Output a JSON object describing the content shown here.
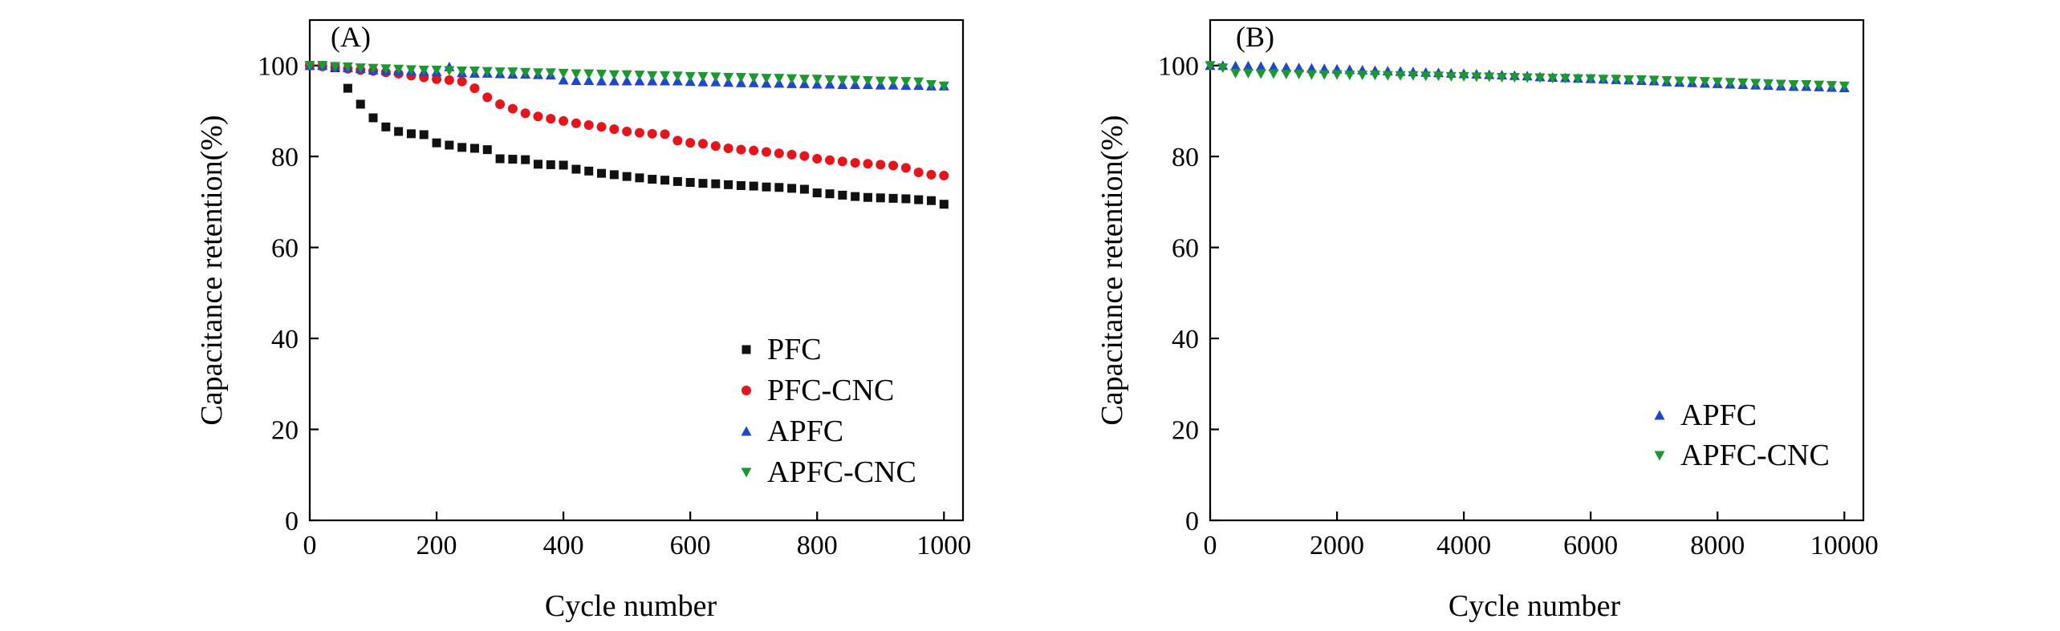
{
  "colors": {
    "PFC": "#111111",
    "PFC-CNC": "#e8141a",
    "APFC": "#1f45d6",
    "APFC-CNC": "#1a9a2e"
  },
  "chart_data": [
    {
      "type": "scatter",
      "panel_label": "(A)",
      "xlabel": "Cycle number",
      "ylabel": "Capacitance retention(%)",
      "xlim": [
        0,
        1030
      ],
      "ylim": [
        0,
        110
      ],
      "xticks": [
        0,
        200,
        400,
        600,
        800,
        1000
      ],
      "yticks": [
        0,
        20,
        40,
        60,
        80,
        100
      ],
      "legend_position": "bottom-right",
      "series": [
        {
          "name": "PFC",
          "marker": "square",
          "x": [
            0,
            20,
            40,
            60,
            80,
            100,
            120,
            140,
            160,
            180,
            200,
            220,
            240,
            260,
            280,
            300,
            320,
            340,
            360,
            380,
            400,
            420,
            440,
            460,
            480,
            500,
            520,
            540,
            560,
            580,
            600,
            620,
            640,
            660,
            680,
            700,
            720,
            740,
            760,
            780,
            800,
            820,
            840,
            860,
            880,
            900,
            920,
            940,
            960,
            980,
            1000
          ],
          "values": [
            100,
            100,
            99.5,
            95,
            91.5,
            88.5,
            86.5,
            85.5,
            85,
            84.8,
            83,
            82.5,
            82,
            81.8,
            81.5,
            79.5,
            79.4,
            79.3,
            78.3,
            78.2,
            78.1,
            77.2,
            76.8,
            76.3,
            76,
            75.6,
            75.3,
            75,
            74.8,
            74.5,
            74.3,
            74.1,
            74,
            73.8,
            73.6,
            73.5,
            73.3,
            73.2,
            73,
            72.8,
            72,
            71.8,
            71.5,
            71.2,
            71,
            70.9,
            70.8,
            70.7,
            70.5,
            70.3,
            69.5
          ]
        },
        {
          "name": "PFC-CNC",
          "marker": "circle",
          "x": [
            0,
            20,
            40,
            60,
            80,
            100,
            120,
            140,
            160,
            180,
            200,
            220,
            240,
            260,
            280,
            300,
            320,
            340,
            360,
            380,
            400,
            420,
            440,
            460,
            480,
            500,
            520,
            540,
            560,
            580,
            600,
            620,
            640,
            660,
            680,
            700,
            720,
            740,
            760,
            780,
            800,
            820,
            840,
            860,
            880,
            900,
            920,
            940,
            960,
            980,
            1000
          ],
          "values": [
            100,
            99.8,
            99.6,
            99.3,
            99,
            98.8,
            98.5,
            98.2,
            97.8,
            97.4,
            97,
            96.8,
            96.5,
            95,
            93,
            91.5,
            90.5,
            89.5,
            88.8,
            88.3,
            87.8,
            87.3,
            86.9,
            86.5,
            86,
            85.5,
            85.2,
            85,
            84.9,
            83.5,
            83,
            82.8,
            82.3,
            81.8,
            81.5,
            81.3,
            81,
            80.7,
            80.4,
            80.1,
            79.5,
            79.2,
            78.9,
            78.6,
            78.4,
            78.2,
            78,
            77.5,
            76.5,
            76,
            75.8
          ]
        },
        {
          "name": "APFC",
          "marker": "triangle-up",
          "x": [
            0,
            20,
            40,
            60,
            80,
            100,
            120,
            140,
            160,
            180,
            200,
            220,
            240,
            260,
            280,
            300,
            320,
            340,
            360,
            380,
            400,
            420,
            440,
            460,
            480,
            500,
            520,
            540,
            560,
            580,
            600,
            620,
            640,
            660,
            680,
            700,
            720,
            740,
            760,
            780,
            800,
            820,
            840,
            860,
            880,
            900,
            920,
            940,
            960,
            980,
            1000
          ],
          "values": [
            100,
            100,
            99.7,
            99.5,
            99.3,
            99,
            98.9,
            98.8,
            98.8,
            98.7,
            98.6,
            99.7,
            98.4,
            98.3,
            98.3,
            98.2,
            98.1,
            98.1,
            98,
            97.9,
            96.8,
            96.7,
            96.7,
            96.6,
            96.6,
            96.6,
            96.6,
            96.6,
            96.6,
            96.6,
            96.5,
            96.4,
            96.4,
            96.3,
            96.2,
            96.2,
            96.1,
            96.1,
            96,
            96,
            95.9,
            95.9,
            95.8,
            95.8,
            95.8,
            95.7,
            95.7,
            95.6,
            95.6,
            95.5,
            95.5
          ]
        },
        {
          "name": "APFC-CNC",
          "marker": "triangle-down",
          "x": [
            0,
            20,
            40,
            60,
            80,
            100,
            120,
            140,
            160,
            180,
            200,
            220,
            240,
            260,
            280,
            300,
            320,
            340,
            360,
            380,
            400,
            420,
            440,
            460,
            480,
            500,
            520,
            540,
            560,
            580,
            600,
            620,
            640,
            660,
            680,
            700,
            720,
            740,
            760,
            780,
            800,
            820,
            840,
            860,
            880,
            900,
            920,
            940,
            960,
            980,
            1000
          ],
          "values": [
            100,
            100,
            99.8,
            99.7,
            99.5,
            99.4,
            99.3,
            99.2,
            99.1,
            99,
            99,
            98.9,
            98.8,
            98.8,
            98.7,
            98.6,
            98.6,
            98.5,
            98.4,
            98.4,
            98.3,
            98.2,
            98.2,
            98.1,
            98,
            98,
            97.9,
            97.8,
            97.8,
            97.7,
            97.6,
            97.6,
            97.5,
            97.4,
            97.4,
            97.3,
            97.2,
            97.2,
            97.1,
            97,
            97,
            96.9,
            96.8,
            96.8,
            96.7,
            96.6,
            96.6,
            96.5,
            96.4,
            95.8,
            95.5
          ]
        }
      ]
    },
    {
      "type": "scatter",
      "panel_label": "(B)",
      "xlabel": "Cycle number",
      "ylabel": "Capacitance retention(%)",
      "xlim": [
        0,
        10300
      ],
      "ylim": [
        0,
        110
      ],
      "xticks": [
        0,
        2000,
        4000,
        6000,
        8000,
        10000
      ],
      "yticks": [
        0,
        20,
        40,
        60,
        80,
        100
      ],
      "legend_position": "bottom-right",
      "series": [
        {
          "name": "APFC",
          "marker": "triangle-up",
          "x": [
            0,
            200,
            400,
            600,
            800,
            1000,
            1200,
            1400,
            1600,
            1800,
            2000,
            2200,
            2400,
            2600,
            2800,
            3000,
            3200,
            3400,
            3600,
            3800,
            4000,
            4200,
            4400,
            4600,
            4800,
            5000,
            5200,
            5400,
            5600,
            5800,
            6000,
            6200,
            6400,
            6600,
            6800,
            7000,
            7200,
            7400,
            7600,
            7800,
            8000,
            8200,
            8400,
            8600,
            8800,
            9000,
            9200,
            9400,
            9600,
            9800,
            10000
          ],
          "values": [
            100,
            100,
            99.9,
            99.9,
            99.8,
            99.7,
            99.6,
            99.5,
            99.4,
            99.3,
            99.2,
            99.1,
            99,
            98.9,
            98.8,
            98.7,
            98.6,
            98.5,
            98.4,
            98.3,
            98.2,
            98.1,
            98,
            97.9,
            97.8,
            97.7,
            97.5,
            97.4,
            97.3,
            97.2,
            97.1,
            97,
            96.9,
            96.8,
            96.7,
            96.6,
            96.4,
            96.3,
            96.2,
            96.1,
            96,
            95.9,
            95.8,
            95.7,
            95.6,
            95.5,
            95.4,
            95.4,
            95.3,
            95.2,
            95.1
          ]
        },
        {
          "name": "APFC-CNC",
          "marker": "triangle-down",
          "x": [
            0,
            200,
            400,
            600,
            800,
            1000,
            1200,
            1400,
            1600,
            1800,
            2000,
            2200,
            2400,
            2600,
            2800,
            3000,
            3200,
            3400,
            3600,
            3800,
            4000,
            4200,
            4400,
            4600,
            4800,
            5000,
            5200,
            5400,
            5600,
            5800,
            6000,
            6200,
            6400,
            6600,
            6800,
            7000,
            7200,
            7400,
            7600,
            7800,
            8000,
            8200,
            8400,
            8600,
            8800,
            9000,
            9200,
            9400,
            9600,
            9800,
            10000
          ],
          "values": [
            100,
            99.5,
            98.3,
            98.3,
            98.2,
            98.2,
            98.1,
            98.1,
            98,
            98,
            98,
            97.9,
            97.9,
            97.9,
            97.8,
            97.8,
            97.8,
            97.7,
            97.7,
            97.6,
            97.6,
            97.5,
            97.5,
            97.4,
            97.4,
            97.3,
            97.3,
            97.2,
            97.2,
            97.1,
            97.1,
            97,
            97,
            96.9,
            96.9,
            96.8,
            96.7,
            96.6,
            96.6,
            96.5,
            96.4,
            96.3,
            96.2,
            96.1,
            96,
            95.9,
            95.8,
            95.8,
            95.7,
            95.6,
            95.5
          ]
        }
      ]
    }
  ]
}
